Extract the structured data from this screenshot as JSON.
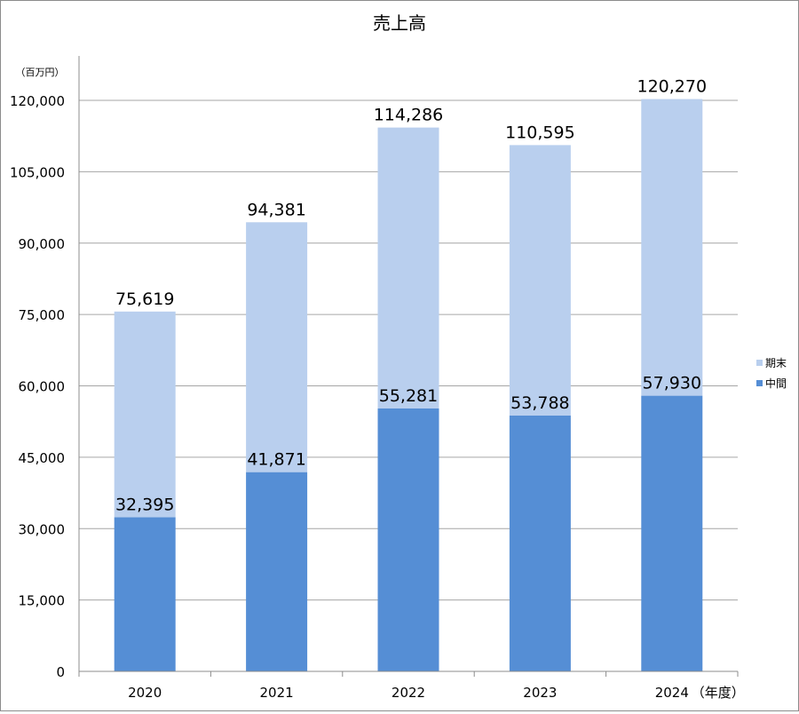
{
  "chart_data": {
    "type": "bar",
    "stacked": true,
    "title": "売上高",
    "unit_label": "（百万円）",
    "x_suffix": "（年度）",
    "categories": [
      "2020",
      "2021",
      "2022",
      "2023",
      "2024"
    ],
    "series": [
      {
        "name": "中間",
        "values": [
          32395,
          41871,
          55281,
          53788,
          57930
        ],
        "color": "#558ed5"
      },
      {
        "name": "期末",
        "values": [
          43224,
          52510,
          59005,
          56807,
          62340
        ],
        "color": "#b9cfee"
      }
    ],
    "data_labels": {
      "中間": [
        "32,395",
        "41,871",
        "55,281",
        "53,788",
        "57,930"
      ],
      "期末": [
        "75,619",
        "94,381",
        "114,286",
        "110,595",
        "120,270"
      ]
    },
    "ylim": [
      0,
      120000
    ],
    "yticks": [
      0,
      15000,
      30000,
      45000,
      60000,
      75000,
      90000,
      105000,
      120000
    ],
    "ytick_labels": [
      "0",
      "15,000",
      "30,000",
      "45,000",
      "60,000",
      "75,000",
      "90,000",
      "105,000",
      "120,000"
    ],
    "grid": true,
    "legend_position": "right"
  }
}
